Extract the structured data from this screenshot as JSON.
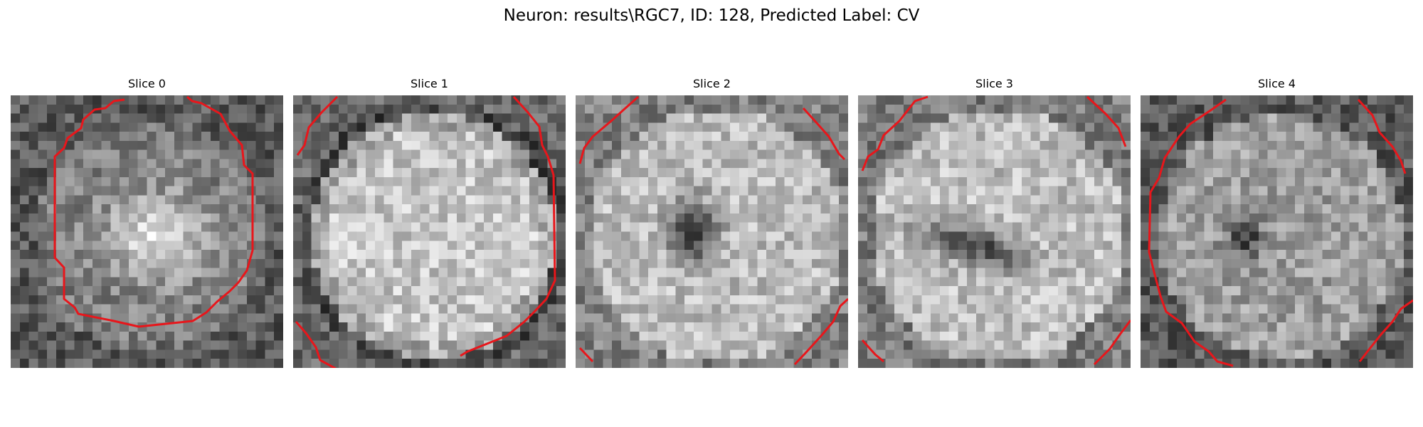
{
  "figure": {
    "title": "Neuron: results\\RGC7, ID: 128, Predicted Label: CV"
  },
  "slices": [
    {
      "label": "Slice 0"
    },
    {
      "label": "Slice 1"
    },
    {
      "label": "Slice 2"
    },
    {
      "label": "Slice 3"
    },
    {
      "label": "Slice 4"
    }
  ],
  "colors": {
    "contour": "#e8161b",
    "background": "#ffffff"
  },
  "colormap": "gray"
}
